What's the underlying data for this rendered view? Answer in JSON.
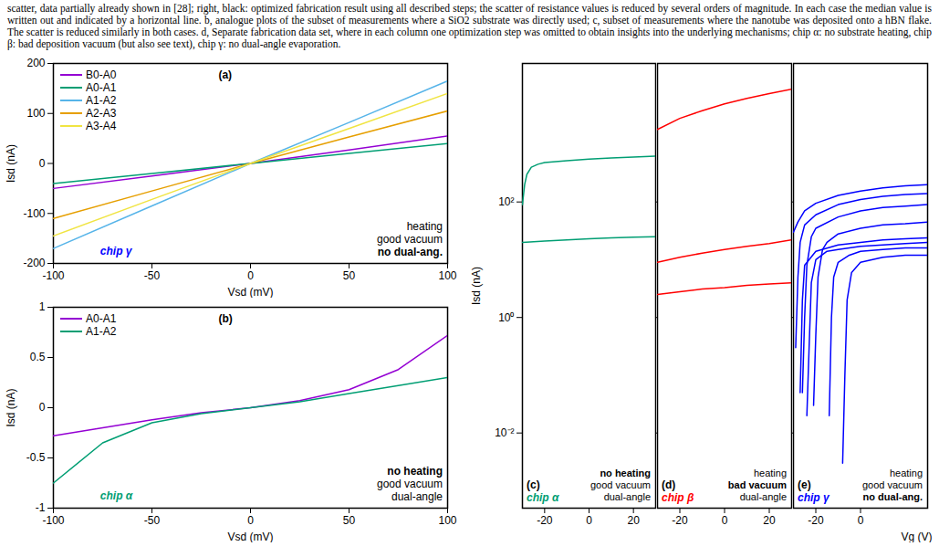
{
  "caption": "scatter, data partially already shown in [28]; right, black: optimized fabrication result using all described steps; the scatter of resistance values is reduced by several orders of magnitude. In each case the median value is written out and indicated by a horizontal line. b, analogue plots of the subset of measurements where a SiO2 substrate was directly used; c, subset of measurements where the nanotube was deposited onto a hBN flake. The scatter is reduced similarly in both cases. d, Separate fabrication data set, where in each column one optimization step was omitted to obtain insights into the underlying mechanisms; chip α: no substrate heating, chip β: bad deposition vacuum (but also see text), chip γ: no dual-angle evaporation.",
  "chart_data": [
    {
      "type": "line",
      "title": "(a)",
      "chip_label": "chip γ",
      "color": "#0000ff",
      "annotations": [
        "heating",
        "good vacuum",
        "no dual-ang."
      ],
      "x_label": "Vsd (mV)",
      "y_label": "Isd (nA)",
      "xlim": [
        -100,
        100
      ],
      "xticks": [
        -100,
        -50,
        0,
        50,
        100
      ],
      "ylim": [
        -200,
        200
      ],
      "yticks": [
        -200,
        -100,
        0,
        100,
        200
      ],
      "legend": "top-left",
      "x": [
        -100,
        -50,
        0,
        50,
        100
      ],
      "series": [
        {
          "name": "B0-A0",
          "color": "#9400d3",
          "values": [
            -50,
            -25,
            0,
            27,
            55
          ]
        },
        {
          "name": "A0-A1",
          "color": "#009e73",
          "values": [
            -40,
            -20,
            0,
            20,
            40
          ]
        },
        {
          "name": "A1-A2",
          "color": "#56b4e9",
          "values": [
            -170,
            -85,
            0,
            82,
            165
          ]
        },
        {
          "name": "A2-A3",
          "color": "#e69f00",
          "values": [
            -110,
            -55,
            0,
            53,
            105
          ]
        },
        {
          "name": "A3-A4",
          "color": "#f0e442",
          "values": [
            -145,
            -72,
            0,
            70,
            140
          ]
        }
      ]
    },
    {
      "type": "line",
      "title": "(b)",
      "chip_label": "chip α",
      "color": "#009e73",
      "annotations": [
        "no heating",
        "good vacuum",
        "dual-angle"
      ],
      "x_label": "Vsd (mV)",
      "y_label": "Isd (nA)",
      "xlim": [
        -100,
        100
      ],
      "xticks": [
        -100,
        -50,
        0,
        50,
        100
      ],
      "ylim": [
        -1,
        1
      ],
      "yticks": [
        -1,
        -0.5,
        0,
        0.5,
        1
      ],
      "legend": "top-left",
      "x": [
        -100,
        -75,
        -50,
        -25,
        0,
        25,
        50,
        75,
        100
      ],
      "series": [
        {
          "name": "A0-A1",
          "color": "#9400d3",
          "values": [
            -0.28,
            -0.2,
            -0.12,
            -0.05,
            0,
            0.07,
            0.18,
            0.38,
            0.72
          ]
        },
        {
          "name": "A1-A2",
          "color": "#009e73",
          "values": [
            -0.75,
            -0.35,
            -0.15,
            -0.06,
            0,
            0.06,
            0.14,
            0.22,
            0.3
          ]
        }
      ]
    },
    {
      "type": "line",
      "title": "(c)",
      "chip_label": "chip α",
      "color": "#009e73",
      "annotations": [
        "no heating",
        "good vacuum",
        "dual-angle"
      ],
      "y_label": "Isd (nA)",
      "log": "y",
      "xlim": [
        -30,
        30
      ],
      "xticks": [
        -20,
        0,
        20
      ],
      "ylim": [
        0.0005,
        25000
      ],
      "yticks": [
        {
          "value": 0.01,
          "label": "10⁻²"
        },
        {
          "value": 1,
          "label": "10⁰"
        },
        {
          "value": 100,
          "label": "10²"
        }
      ],
      "series": [
        {
          "color": "#009e73",
          "x": [
            -30,
            -29,
            -28,
            -26,
            -23,
            -20,
            -10,
            0,
            10,
            20,
            30
          ],
          "values": [
            90,
            200,
            300,
            400,
            450,
            480,
            520,
            550,
            580,
            600,
            620
          ]
        },
        {
          "color": "#009e73",
          "x": [
            -30,
            -20,
            -10,
            0,
            10,
            20,
            30
          ],
          "values": [
            20,
            21,
            22,
            23,
            24,
            24.5,
            25
          ]
        }
      ]
    },
    {
      "type": "line",
      "title": "(d)",
      "chip_label": "chip β",
      "color": "#ff0000",
      "annotations": [
        "heating",
        "bad vacuum",
        "dual-angle"
      ],
      "log": "y",
      "tick_labels": "x",
      "xlim": [
        -30,
        30
      ],
      "xticks": [
        -20,
        0,
        20
      ],
      "ylim": [
        0.0005,
        25000
      ],
      "yticks": [
        {
          "value": 0.01,
          "label": "10⁻²"
        },
        {
          "value": 1,
          "label": "10⁰"
        },
        {
          "value": 100,
          "label": "10²"
        }
      ],
      "series": [
        {
          "color": "#ff0000",
          "x": [
            -30,
            -20,
            -10,
            0,
            10,
            20,
            30
          ],
          "values": [
            1800,
            2800,
            3800,
            5000,
            6200,
            7500,
            9000
          ]
        },
        {
          "color": "#ff0000",
          "x": [
            -30,
            -20,
            -10,
            0,
            10,
            20,
            30
          ],
          "values": [
            9,
            11,
            13,
            15,
            17,
            19,
            22
          ]
        },
        {
          "color": "#ff0000",
          "x": [
            -30,
            -20,
            -10,
            0,
            10,
            20,
            30
          ],
          "values": [
            2.5,
            2.8,
            3.1,
            3.3,
            3.6,
            3.8,
            4
          ]
        }
      ]
    },
    {
      "type": "line",
      "title": "(e)",
      "chip_label": "chip γ",
      "color": "#0000ff",
      "annotations": [
        "heating",
        "good vacuum",
        "no dual-ang."
      ],
      "x_label": "Vg (V)",
      "log": "y",
      "tick_labels": "x",
      "xlim": [
        -30,
        30
      ],
      "xticks": [
        -20,
        0
      ],
      "ylim": [
        0.0005,
        25000
      ],
      "yticks": [
        {
          "value": 0.01,
          "label": "10⁻²"
        },
        {
          "value": 1,
          "label": "10⁰"
        },
        {
          "value": 100,
          "label": "10²"
        }
      ],
      "series": [
        {
          "color": "#0000ff",
          "x": [
            -30,
            -28,
            -25,
            -20,
            -10,
            0,
            10,
            20,
            30
          ],
          "values": [
            30,
            45,
            70,
            95,
            130,
            155,
            175,
            190,
            200
          ]
        },
        {
          "color": "#0000ff",
          "x": [
            -29,
            -28,
            -27,
            -25,
            -20,
            -10,
            0,
            10,
            20,
            30
          ],
          "values": [
            0.3,
            5,
            20,
            40,
            60,
            90,
            110,
            125,
            135,
            140
          ]
        },
        {
          "color": "#0000ff",
          "x": [
            -26,
            -25,
            -24,
            -22,
            -20,
            -10,
            0,
            10,
            20,
            30
          ],
          "values": [
            0.05,
            1,
            8,
            25,
            35,
            55,
            70,
            80,
            85,
            90
          ]
        },
        {
          "color": "#0000ff",
          "x": [
            -21,
            -20,
            -19,
            -17,
            -15,
            -10,
            0,
            10,
            20,
            30
          ],
          "values": [
            0.03,
            0.5,
            5,
            15,
            20,
            28,
            35,
            40,
            42,
            45
          ]
        },
        {
          "color": "#0000ff",
          "x": [
            -24,
            -23,
            -22,
            -20,
            -15,
            -10,
            0,
            10,
            20,
            30
          ],
          "values": [
            0.02,
            0.3,
            4,
            10,
            14,
            15,
            17,
            18,
            19,
            20
          ]
        },
        {
          "color": "#0000ff",
          "x": [
            -14,
            -13,
            -12,
            -10,
            -5,
            0,
            10,
            20,
            30
          ],
          "values": [
            0.02,
            1,
            5,
            9,
            12,
            14,
            15,
            16,
            16
          ]
        },
        {
          "color": "#0000ff",
          "x": [
            -8,
            -7,
            -6,
            -4,
            0,
            10,
            20,
            30
          ],
          "values": [
            0.003,
            0.1,
            2,
            6,
            9,
            11,
            12,
            12
          ]
        },
        {
          "color": "#0000ff",
          "x": [
            -27,
            -26,
            -25,
            -20,
            -10,
            0,
            10,
            20,
            30
          ],
          "values": [
            0.05,
            2,
            8,
            14,
            18,
            20,
            22,
            23,
            24
          ]
        }
      ]
    }
  ]
}
